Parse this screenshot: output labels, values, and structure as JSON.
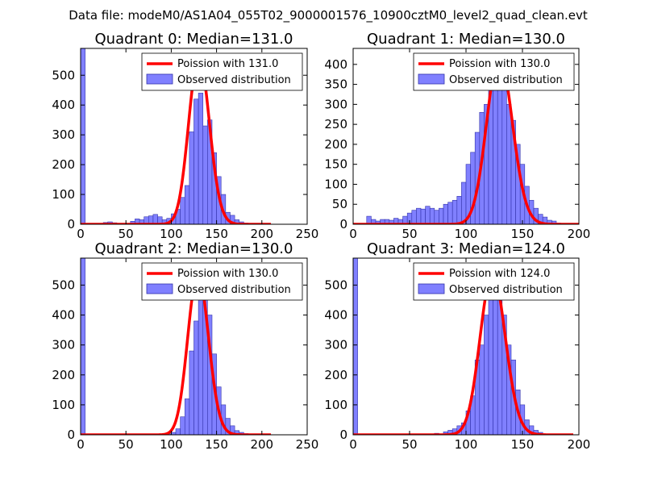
{
  "suptitle": "Data file: modeM0/AS1A04_055T02_9000001576_10900cztM0_level2_quad_clean.evt",
  "colors": {
    "bar_fill": "#8080ff",
    "bar_edge": "#3333aa",
    "curve": "#ff0000"
  },
  "chart_data": [
    {
      "type": "bar",
      "title": "Quadrant 0: Median=131.0",
      "xlim": [
        0,
        250
      ],
      "ylim": [
        0,
        590
      ],
      "xticks": [
        0,
        50,
        100,
        150,
        200,
        250
      ],
      "yticks": [
        0,
        100,
        200,
        300,
        400,
        500
      ],
      "xlabel": "",
      "ylabel": "",
      "legend": [
        "Poission with 131.0",
        "Observed distribution"
      ],
      "median": 131.0,
      "series": [
        {
          "name": "Observed distribution",
          "bin_width": 5,
          "bin_starts": [
            0,
            25,
            30,
            35,
            45,
            55,
            60,
            65,
            70,
            75,
            80,
            85,
            90,
            95,
            100,
            105,
            110,
            115,
            120,
            125,
            130,
            135,
            140,
            145,
            150,
            155,
            160,
            165,
            170,
            175,
            180
          ],
          "counts": [
            590,
            6,
            8,
            5,
            3,
            10,
            18,
            15,
            25,
            28,
            33,
            25,
            15,
            20,
            35,
            50,
            90,
            130,
            310,
            420,
            440,
            330,
            350,
            240,
            160,
            100,
            40,
            30,
            15,
            8,
            4
          ]
        },
        {
          "name": "Poission with 131.0",
          "lambda": 131.0,
          "scale": 562,
          "x_range": [
            0,
            210
          ]
        }
      ]
    },
    {
      "type": "bar",
      "title": "Quadrant 1: Median=130.0",
      "xlim": [
        0,
        200
      ],
      "ylim": [
        0,
        440
      ],
      "xticks": [
        0,
        50,
        100,
        150,
        200
      ],
      "yticks": [
        0,
        50,
        100,
        150,
        200,
        250,
        300,
        350,
        400
      ],
      "xlabel": "",
      "ylabel": "",
      "legend": [
        "Poission with 130.0",
        "Observed distribution"
      ],
      "median": 130.0,
      "series": [
        {
          "name": "Observed distribution",
          "bin_width": 4,
          "bin_starts": [
            12,
            16,
            20,
            24,
            28,
            32,
            36,
            40,
            44,
            48,
            52,
            56,
            60,
            64,
            68,
            72,
            76,
            80,
            84,
            88,
            92,
            96,
            100,
            104,
            108,
            112,
            116,
            120,
            124,
            128,
            132,
            136,
            140,
            144,
            148,
            152,
            156,
            160,
            164,
            168,
            172,
            176,
            180,
            184
          ],
          "counts": [
            20,
            12,
            8,
            12,
            12,
            10,
            15,
            12,
            20,
            28,
            35,
            40,
            38,
            45,
            40,
            35,
            40,
            50,
            55,
            60,
            70,
            105,
            150,
            180,
            230,
            280,
            300,
            400,
            420,
            410,
            350,
            300,
            260,
            200,
            150,
            95,
            60,
            40,
            25,
            18,
            10,
            8,
            3,
            2
          ]
        },
        {
          "name": "Poission with 130.0",
          "lambda": 130.0,
          "scale": 420,
          "x_range": [
            0,
            200
          ]
        }
      ]
    },
    {
      "type": "bar",
      "title": "Quadrant 2: Median=130.0",
      "xlim": [
        0,
        250
      ],
      "ylim": [
        0,
        590
      ],
      "xticks": [
        0,
        50,
        100,
        150,
        200,
        250
      ],
      "yticks": [
        0,
        100,
        200,
        300,
        400,
        500
      ],
      "xlabel": "",
      "ylabel": "",
      "legend": [
        "Poission with 130.0",
        "Observed distribution"
      ],
      "median": 130.0,
      "series": [
        {
          "name": "Observed distribution",
          "bin_width": 5,
          "bin_starts": [
            0,
            95,
            100,
            105,
            110,
            115,
            120,
            125,
            130,
            135,
            140,
            145,
            150,
            155,
            160,
            165,
            170,
            175,
            180,
            185,
            190,
            195
          ],
          "counts": [
            590,
            3,
            8,
            20,
            60,
            120,
            280,
            380,
            560,
            500,
            400,
            270,
            160,
            100,
            55,
            30,
            14,
            8,
            4,
            2,
            1,
            1
          ]
        },
        {
          "name": "Poission with 130.0",
          "lambda": 130.0,
          "scale": 540,
          "x_range": [
            0,
            210
          ]
        }
      ]
    },
    {
      "type": "bar",
      "title": "Quadrant 3: Median=124.0",
      "xlim": [
        0,
        200
      ],
      "ylim": [
        0,
        590
      ],
      "xticks": [
        0,
        50,
        100,
        150,
        200
      ],
      "yticks": [
        0,
        100,
        200,
        300,
        400,
        500
      ],
      "xlabel": "",
      "ylabel": "",
      "legend": [
        "Poission with 124.0",
        "Observed distribution"
      ],
      "median": 124.0,
      "series": [
        {
          "name": "Observed distribution",
          "bin_width": 4,
          "bin_starts": [
            0,
            60,
            68,
            72,
            80,
            84,
            88,
            92,
            96,
            100,
            104,
            108,
            112,
            116,
            120,
            124,
            128,
            132,
            136,
            140,
            144,
            148,
            152,
            156,
            160,
            164,
            168
          ],
          "counts": [
            590,
            2,
            3,
            5,
            10,
            15,
            20,
            30,
            40,
            80,
            130,
            250,
            300,
            400,
            500,
            540,
            520,
            400,
            300,
            250,
            150,
            100,
            50,
            30,
            15,
            8,
            3
          ]
        },
        {
          "name": "Poission with 124.0",
          "lambda": 124.0,
          "scale": 540,
          "x_range": [
            0,
            195
          ]
        }
      ]
    }
  ]
}
